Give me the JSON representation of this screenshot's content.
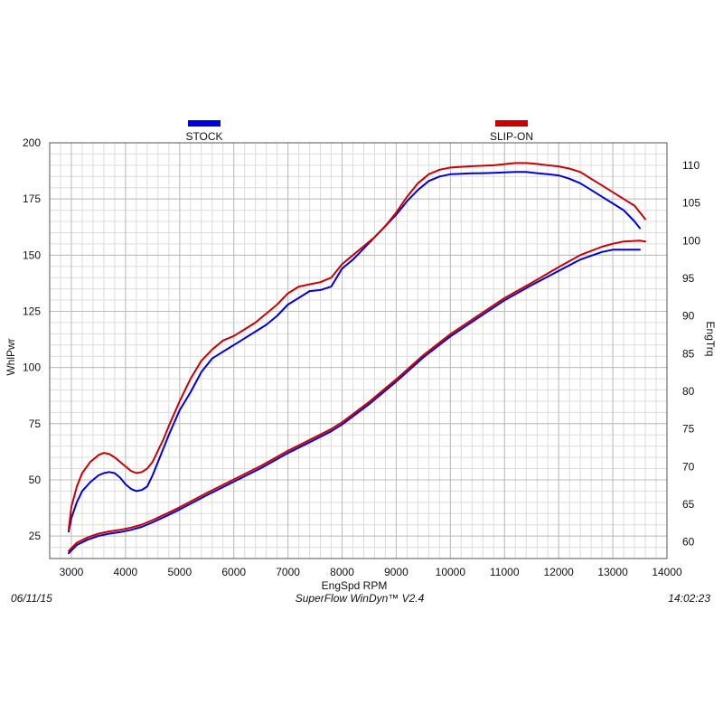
{
  "chart_data": {
    "type": "line",
    "xlabel": "EngSpd  RPM",
    "ylabel": "WhlPwr",
    "y2label": "EngTrq",
    "xlim": [
      2600,
      14000
    ],
    "ylim": [
      15,
      200
    ],
    "y2lim": [
      57.8,
      113
    ],
    "x_ticks": [
      3000,
      4000,
      5000,
      6000,
      7000,
      8000,
      9000,
      10000,
      11000,
      12000,
      13000,
      14000
    ],
    "y_ticks": [
      25,
      50,
      75,
      100,
      125,
      150,
      175,
      200
    ],
    "y2_ticks": [
      60,
      65,
      70,
      75,
      80,
      85,
      90,
      95,
      100,
      105,
      110
    ],
    "grid": true,
    "legend": [
      {
        "name": "STOCK",
        "color": "#0000dd"
      },
      {
        "name": "SLIP-ON",
        "color": "#cc0000"
      }
    ],
    "series": [
      {
        "name": "STOCK",
        "quantity": "WhlPwr",
        "axis": "left",
        "color": "#0000dd",
        "x": [
          2950,
          3000,
          3100,
          3200,
          3350,
          3500,
          3600,
          3700,
          3800,
          3900,
          4000,
          4100,
          4200,
          4300,
          4400,
          4500,
          4600,
          4700,
          4800,
          5000,
          5200,
          5400,
          5600,
          5800,
          6000,
          6200,
          6400,
          6600,
          6800,
          7000,
          7200,
          7400,
          7600,
          7800,
          8000,
          8200,
          8400,
          8600,
          8800,
          9000,
          9200,
          9400,
          9600,
          9800,
          10000,
          10200,
          10400,
          10600,
          10800,
          11000,
          11200,
          11400,
          11600,
          11800,
          12000,
          12200,
          12400,
          12600,
          12800,
          13000,
          13200,
          13400,
          13500
        ],
        "y": [
          27,
          33,
          40,
          45,
          49,
          52,
          53,
          53.5,
          53,
          51,
          48,
          46,
          45,
          45.5,
          47,
          52,
          58,
          64,
          70,
          81,
          89,
          98,
          104,
          107,
          110,
          113,
          116,
          119,
          123,
          128,
          131,
          134,
          134.5,
          136,
          144,
          148,
          153,
          158,
          163,
          168,
          174,
          179,
          183,
          185,
          186,
          186.2,
          186.4,
          186.5,
          186.6,
          186.8,
          187,
          187,
          186.5,
          186,
          185.5,
          184,
          182,
          179,
          176,
          173,
          170,
          165,
          162
        ]
      },
      {
        "name": "SLIP-ON",
        "quantity": "WhlPwr",
        "axis": "left",
        "color": "#cc0000",
        "x": [
          2950,
          3000,
          3100,
          3200,
          3350,
          3500,
          3600,
          3700,
          3800,
          3900,
          4000,
          4100,
          4200,
          4300,
          4400,
          4500,
          4600,
          4700,
          4800,
          5000,
          5200,
          5400,
          5600,
          5800,
          6000,
          6200,
          6400,
          6600,
          6800,
          7000,
          7200,
          7400,
          7600,
          7800,
          8000,
          8200,
          8400,
          8600,
          8800,
          9000,
          9200,
          9400,
          9600,
          9800,
          10000,
          10200,
          10400,
          10600,
          10800,
          11000,
          11200,
          11400,
          11600,
          11800,
          12000,
          12200,
          12400,
          12600,
          12800,
          13000,
          13200,
          13400,
          13600
        ],
        "y": [
          28,
          38,
          47,
          53,
          58,
          61,
          62,
          61.5,
          60,
          58,
          56,
          54,
          53,
          53.5,
          55,
          58,
          63,
          68,
          74,
          85,
          95,
          103,
          108,
          112,
          114,
          117,
          120,
          124,
          128,
          133,
          136,
          137,
          138,
          140,
          146,
          150,
          154,
          158,
          163,
          169,
          176,
          182,
          186,
          188,
          189,
          189.3,
          189.6,
          189.8,
          190,
          190.5,
          191,
          191,
          190.6,
          190,
          189.5,
          188.5,
          187,
          184,
          181,
          178,
          175,
          172,
          166
        ]
      },
      {
        "name": "STOCK",
        "quantity": "EngTrq",
        "axis": "right",
        "color": "#0000dd",
        "x": [
          2950,
          3100,
          3300,
          3500,
          3700,
          3900,
          4100,
          4300,
          4500,
          4800,
          5000,
          5500,
          6000,
          6500,
          7000,
          7500,
          7800,
          8000,
          8500,
          9000,
          9500,
          10000,
          10500,
          11000,
          11500,
          12000,
          12400,
          12800,
          13000,
          13200,
          13500
        ],
        "y": [
          58.5,
          59.6,
          60.3,
          60.8,
          61.1,
          61.3,
          61.6,
          62.0,
          62.6,
          63.6,
          64.3,
          66.2,
          68.0,
          69.8,
          71.8,
          73.6,
          74.7,
          75.6,
          78.3,
          81.3,
          84.5,
          87.3,
          89.7,
          92.1,
          94.1,
          96.0,
          97.5,
          98.5,
          98.8,
          98.8,
          98.8
        ]
      },
      {
        "name": "SLIP-ON",
        "quantity": "EngTrq",
        "axis": "right",
        "color": "#cc0000",
        "x": [
          2950,
          3100,
          3300,
          3500,
          3700,
          3900,
          4100,
          4300,
          4500,
          4800,
          5000,
          5500,
          6000,
          6500,
          7000,
          7500,
          7800,
          8000,
          8500,
          9000,
          9500,
          10000,
          10500,
          11000,
          11500,
          12000,
          12400,
          12800,
          13000,
          13200,
          13500,
          13600
        ],
        "y": [
          58.8,
          59.9,
          60.6,
          61.1,
          61.4,
          61.6,
          61.9,
          62.3,
          62.9,
          63.9,
          64.6,
          66.5,
          68.3,
          70.1,
          72.1,
          73.9,
          75.0,
          75.9,
          78.6,
          81.6,
          84.8,
          87.6,
          90.0,
          92.4,
          94.4,
          96.5,
          98.1,
          99.2,
          99.6,
          99.9,
          100.0,
          99.9
        ]
      }
    ]
  },
  "footer": {
    "date": "06/11/15",
    "software": "SuperFlow WinDyn™  V2.4",
    "time": "14:02:23"
  }
}
